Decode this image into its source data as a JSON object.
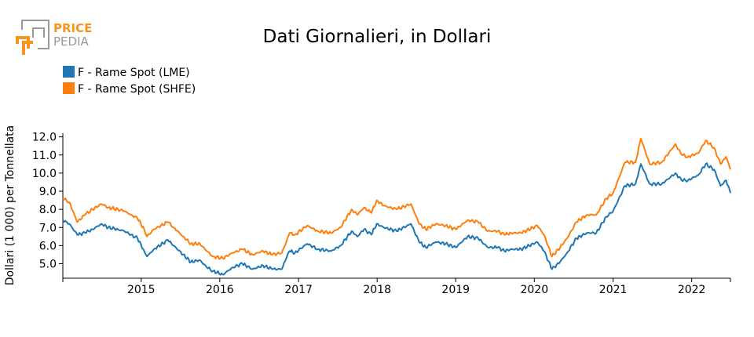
{
  "logo": {
    "line1": "PRICE",
    "line2": "PEDIA",
    "accent_color": "#f7941d",
    "gray_color": "#9a9a9a"
  },
  "chart_data": {
    "type": "line",
    "title": "Dati Giornalieri, in Dollari",
    "xlabel": "",
    "ylabel": "Dollari (1 000) per Tonnellata",
    "xlim": [
      "2014-01-02",
      "2022-06-30"
    ],
    "ylim": [
      4.2,
      12.2
    ],
    "x_ticks": [
      "2015",
      "2016",
      "2017",
      "2018",
      "2019",
      "2020",
      "2021",
      "2022"
    ],
    "y_ticks": [
      "5.0",
      "6.0",
      "7.0",
      "8.0",
      "9.0",
      "10.0",
      "11.0",
      "12.0"
    ],
    "grid": false,
    "legend_position": "top-left",
    "series": [
      {
        "name": "F - Rame Spot (LME)",
        "color": "#1f77b4",
        "points": [
          [
            "2014-01-02",
            7.4
          ],
          [
            "2014-02-01",
            7.2
          ],
          [
            "2014-03-10",
            6.6
          ],
          [
            "2014-04-15",
            6.7
          ],
          [
            "2014-05-20",
            6.9
          ],
          [
            "2014-07-01",
            7.2
          ],
          [
            "2014-08-01",
            7.0
          ],
          [
            "2014-09-15",
            6.9
          ],
          [
            "2014-10-15",
            6.8
          ],
          [
            "2014-11-15",
            6.6
          ],
          [
            "2014-12-15",
            6.4
          ],
          [
            "2015-01-15",
            5.7
          ],
          [
            "2015-01-28",
            5.4
          ],
          [
            "2015-03-01",
            5.8
          ],
          [
            "2015-05-05",
            6.3
          ],
          [
            "2015-06-01",
            6.0
          ],
          [
            "2015-07-15",
            5.5
          ],
          [
            "2015-08-20",
            5.1
          ],
          [
            "2015-10-01",
            5.2
          ],
          [
            "2015-11-01",
            4.8
          ],
          [
            "2015-12-01",
            4.6
          ],
          [
            "2016-01-15",
            4.4
          ],
          [
            "2016-03-01",
            4.8
          ],
          [
            "2016-04-15",
            5.0
          ],
          [
            "2016-06-01",
            4.7
          ],
          [
            "2016-07-20",
            4.9
          ],
          [
            "2016-09-01",
            4.7
          ],
          [
            "2016-10-15",
            4.7
          ],
          [
            "2016-11-05",
            5.3
          ],
          [
            "2016-11-20",
            5.7
          ],
          [
            "2016-12-15",
            5.6
          ],
          [
            "2017-02-10",
            6.1
          ],
          [
            "2017-04-01",
            5.8
          ],
          [
            "2017-06-01",
            5.7
          ],
          [
            "2017-07-15",
            6.0
          ],
          [
            "2017-09-05",
            6.8
          ],
          [
            "2017-10-01",
            6.5
          ],
          [
            "2017-11-01",
            6.9
          ],
          [
            "2017-12-05",
            6.6
          ],
          [
            "2017-12-30",
            7.2
          ],
          [
            "2018-02-01",
            7.0
          ],
          [
            "2018-04-01",
            6.8
          ],
          [
            "2018-06-07",
            7.2
          ],
          [
            "2018-07-15",
            6.2
          ],
          [
            "2018-08-15",
            5.9
          ],
          [
            "2018-10-01",
            6.2
          ],
          [
            "2018-11-15",
            6.1
          ],
          [
            "2019-01-01",
            5.9
          ],
          [
            "2019-02-25",
            6.5
          ],
          [
            "2019-04-15",
            6.4
          ],
          [
            "2019-05-30",
            5.9
          ],
          [
            "2019-07-15",
            5.9
          ],
          [
            "2019-08-15",
            5.7
          ],
          [
            "2019-09-15",
            5.8
          ],
          [
            "2019-11-01",
            5.8
          ],
          [
            "2020-01-15",
            6.2
          ],
          [
            "2020-02-15",
            5.7
          ],
          [
            "2020-03-23",
            4.7
          ],
          [
            "2020-04-30",
            5.1
          ],
          [
            "2020-06-01",
            5.6
          ],
          [
            "2020-07-15",
            6.4
          ],
          [
            "2020-09-01",
            6.7
          ],
          [
            "2020-10-15",
            6.7
          ],
          [
            "2020-11-30",
            7.6
          ],
          [
            "2021-01-01",
            7.9
          ],
          [
            "2021-02-25",
            9.3
          ],
          [
            "2021-04-15",
            9.4
          ],
          [
            "2021-05-10",
            10.5
          ],
          [
            "2021-06-20",
            9.4
          ],
          [
            "2021-08-15",
            9.4
          ],
          [
            "2021-10-18",
            10.0
          ],
          [
            "2021-11-15",
            9.6
          ],
          [
            "2021-12-15",
            9.6
          ],
          [
            "2022-02-01",
            9.9
          ],
          [
            "2022-03-07",
            10.5
          ],
          [
            "2022-04-15",
            10.2
          ],
          [
            "2022-05-15",
            9.3
          ],
          [
            "2022-06-10",
            9.6
          ],
          [
            "2022-06-30",
            8.9
          ]
        ]
      },
      {
        "name": "F - Rame Spot (SHFE)",
        "color": "#ff7f0e",
        "points": [
          [
            "2014-01-02",
            8.6
          ],
          [
            "2014-02-01",
            8.4
          ],
          [
            "2014-03-10",
            7.3
          ],
          [
            "2014-04-15",
            7.7
          ],
          [
            "2014-05-20",
            8.0
          ],
          [
            "2014-07-01",
            8.3
          ],
          [
            "2014-08-01",
            8.1
          ],
          [
            "2014-09-15",
            8.0
          ],
          [
            "2014-10-15",
            7.9
          ],
          [
            "2014-11-15",
            7.7
          ],
          [
            "2014-12-15",
            7.5
          ],
          [
            "2015-01-15",
            6.9
          ],
          [
            "2015-01-28",
            6.5
          ],
          [
            "2015-03-01",
            6.9
          ],
          [
            "2015-05-05",
            7.3
          ],
          [
            "2015-06-01",
            7.0
          ],
          [
            "2015-07-15",
            6.5
          ],
          [
            "2015-08-20",
            6.1
          ],
          [
            "2015-10-01",
            6.1
          ],
          [
            "2015-11-01",
            5.7
          ],
          [
            "2015-12-01",
            5.4
          ],
          [
            "2016-01-15",
            5.3
          ],
          [
            "2016-03-01",
            5.6
          ],
          [
            "2016-04-15",
            5.8
          ],
          [
            "2016-06-01",
            5.5
          ],
          [
            "2016-07-20",
            5.7
          ],
          [
            "2016-09-01",
            5.5
          ],
          [
            "2016-10-15",
            5.6
          ],
          [
            "2016-11-05",
            6.2
          ],
          [
            "2016-11-20",
            6.7
          ],
          [
            "2016-12-15",
            6.6
          ],
          [
            "2017-02-10",
            7.1
          ],
          [
            "2017-04-01",
            6.8
          ],
          [
            "2017-06-01",
            6.7
          ],
          [
            "2017-07-15",
            7.0
          ],
          [
            "2017-09-05",
            8.0
          ],
          [
            "2017-10-01",
            7.7
          ],
          [
            "2017-11-01",
            8.1
          ],
          [
            "2017-12-05",
            7.8
          ],
          [
            "2017-12-30",
            8.5
          ],
          [
            "2018-02-01",
            8.2
          ],
          [
            "2018-04-01",
            8.0
          ],
          [
            "2018-06-07",
            8.3
          ],
          [
            "2018-07-15",
            7.2
          ],
          [
            "2018-08-15",
            6.9
          ],
          [
            "2018-10-01",
            7.2
          ],
          [
            "2018-11-15",
            7.1
          ],
          [
            "2019-01-01",
            6.9
          ],
          [
            "2019-02-25",
            7.4
          ],
          [
            "2019-04-15",
            7.3
          ],
          [
            "2019-05-30",
            6.8
          ],
          [
            "2019-07-15",
            6.8
          ],
          [
            "2019-08-15",
            6.6
          ],
          [
            "2019-09-15",
            6.7
          ],
          [
            "2019-11-01",
            6.7
          ],
          [
            "2020-01-15",
            7.1
          ],
          [
            "2020-02-15",
            6.6
          ],
          [
            "2020-03-23",
            5.4
          ],
          [
            "2020-04-30",
            5.9
          ],
          [
            "2020-06-01",
            6.4
          ],
          [
            "2020-07-15",
            7.3
          ],
          [
            "2020-09-01",
            7.7
          ],
          [
            "2020-10-15",
            7.7
          ],
          [
            "2020-11-30",
            8.6
          ],
          [
            "2021-01-01",
            8.9
          ],
          [
            "2021-02-25",
            10.6
          ],
          [
            "2021-04-15",
            10.6
          ],
          [
            "2021-05-10",
            11.9
          ],
          [
            "2021-06-20",
            10.5
          ],
          [
            "2021-08-15",
            10.6
          ],
          [
            "2021-10-18",
            11.6
          ],
          [
            "2021-11-15",
            11.0
          ],
          [
            "2021-12-15",
            10.9
          ],
          [
            "2022-02-01",
            11.1
          ],
          [
            "2022-03-07",
            11.8
          ],
          [
            "2022-04-15",
            11.4
          ],
          [
            "2022-05-15",
            10.5
          ],
          [
            "2022-06-10",
            10.9
          ],
          [
            "2022-06-30",
            10.2
          ]
        ]
      }
    ]
  }
}
